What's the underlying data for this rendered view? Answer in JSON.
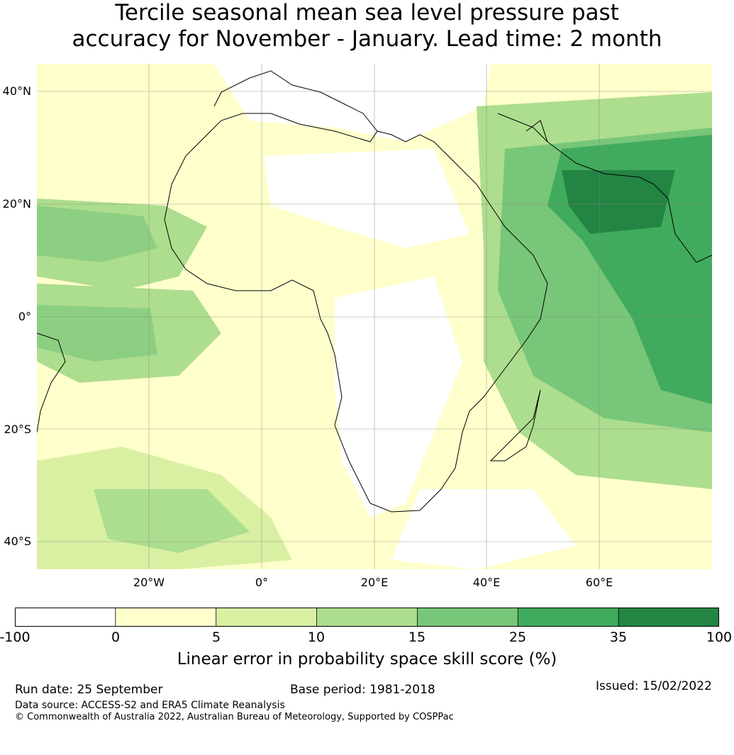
{
  "title_line1": "Tercile seasonal mean sea level pressure past",
  "title_line2": "accuracy for November - January. Lead time: 2 month",
  "lat_labels": [
    "40°N",
    "20°N",
    "0°",
    "20°S",
    "40°S"
  ],
  "lon_labels": [
    "20°W",
    "0°",
    "20°E",
    "40°E",
    "60°E"
  ],
  "colorbar": {
    "ticks": [
      "-100",
      "0",
      "5",
      "10",
      "15",
      "25",
      "35",
      "100"
    ],
    "colors": [
      "#ffffff",
      "#ffffcc",
      "#d9f0a3",
      "#addd8e",
      "#78c679",
      "#41ab5d",
      "#238443"
    ],
    "label": "Linear error in probability space skill score (%)"
  },
  "footer": {
    "run_date": "Run date: 25 September",
    "base_period": "Base period: 1981-2018",
    "issued": "Issued: 15/02/2022",
    "data_source": "Data source: ACCESS-S2 and ERA5 Climate Reanalysis",
    "copyright": "© Commonwealth of Australia 2022, Australian Bureau of Meteorology, Supported by COSPPac"
  }
}
